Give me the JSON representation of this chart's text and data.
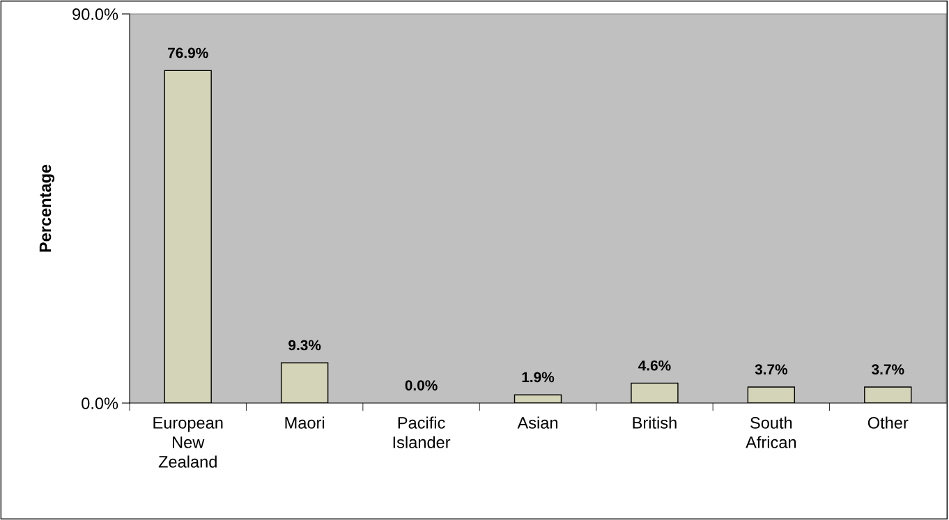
{
  "chart_data": {
    "type": "bar",
    "ylabel": "Percentage",
    "categories": [
      "European\nNew\nZealand",
      "Maori",
      "Pacific\nIslander",
      "Asian",
      "British",
      "South\nAfrican",
      "Other"
    ],
    "values": [
      76.9,
      9.3,
      0.0,
      1.9,
      4.6,
      3.7,
      3.7
    ],
    "value_labels": [
      "76.9%",
      "9.3%",
      "0.0%",
      "1.9%",
      "4.6%",
      "3.7%",
      "3.7%"
    ],
    "color": "#d4d4b8",
    "ylim": [
      0,
      90
    ],
    "yticks": [
      {
        "value": 0,
        "label": "0.0%"
      },
      {
        "value": 90,
        "label": "90.0%"
      }
    ],
    "grid": false
  }
}
